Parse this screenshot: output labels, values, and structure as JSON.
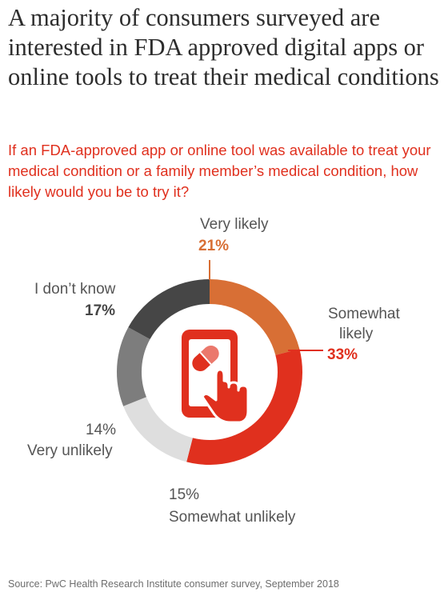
{
  "headline": "A majority of consumers surveyed are interested in FDA approved digital apps or online tools to treat their medical conditions",
  "question": "If an FDA-approved app or online tool was available to treat your medical condition or a family member’s medical condition, how likely would you be to try it?",
  "source": "Source: PwC Health Research Institute consumer survey, September 2018",
  "chart_data": {
    "type": "pie",
    "style": "donut",
    "title": "",
    "start": "top, clockwise",
    "slices": [
      {
        "label": "Very likely",
        "value": 21,
        "display": "21%",
        "color": "#d86f35"
      },
      {
        "label": "Somewhat likely",
        "value": 33,
        "display": "33%",
        "color": "#e0301e"
      },
      {
        "label": "Somewhat unlikely",
        "value": 15,
        "display": "15%",
        "color": "#dedede"
      },
      {
        "label": "Very unlikely",
        "value": 14,
        "display": "14%",
        "color": "#7d7d7d"
      },
      {
        "label": "I don’t know",
        "value": 17,
        "display": "17%",
        "color": "#464646"
      }
    ],
    "center_icon": "phone-touch-pill-icon"
  }
}
